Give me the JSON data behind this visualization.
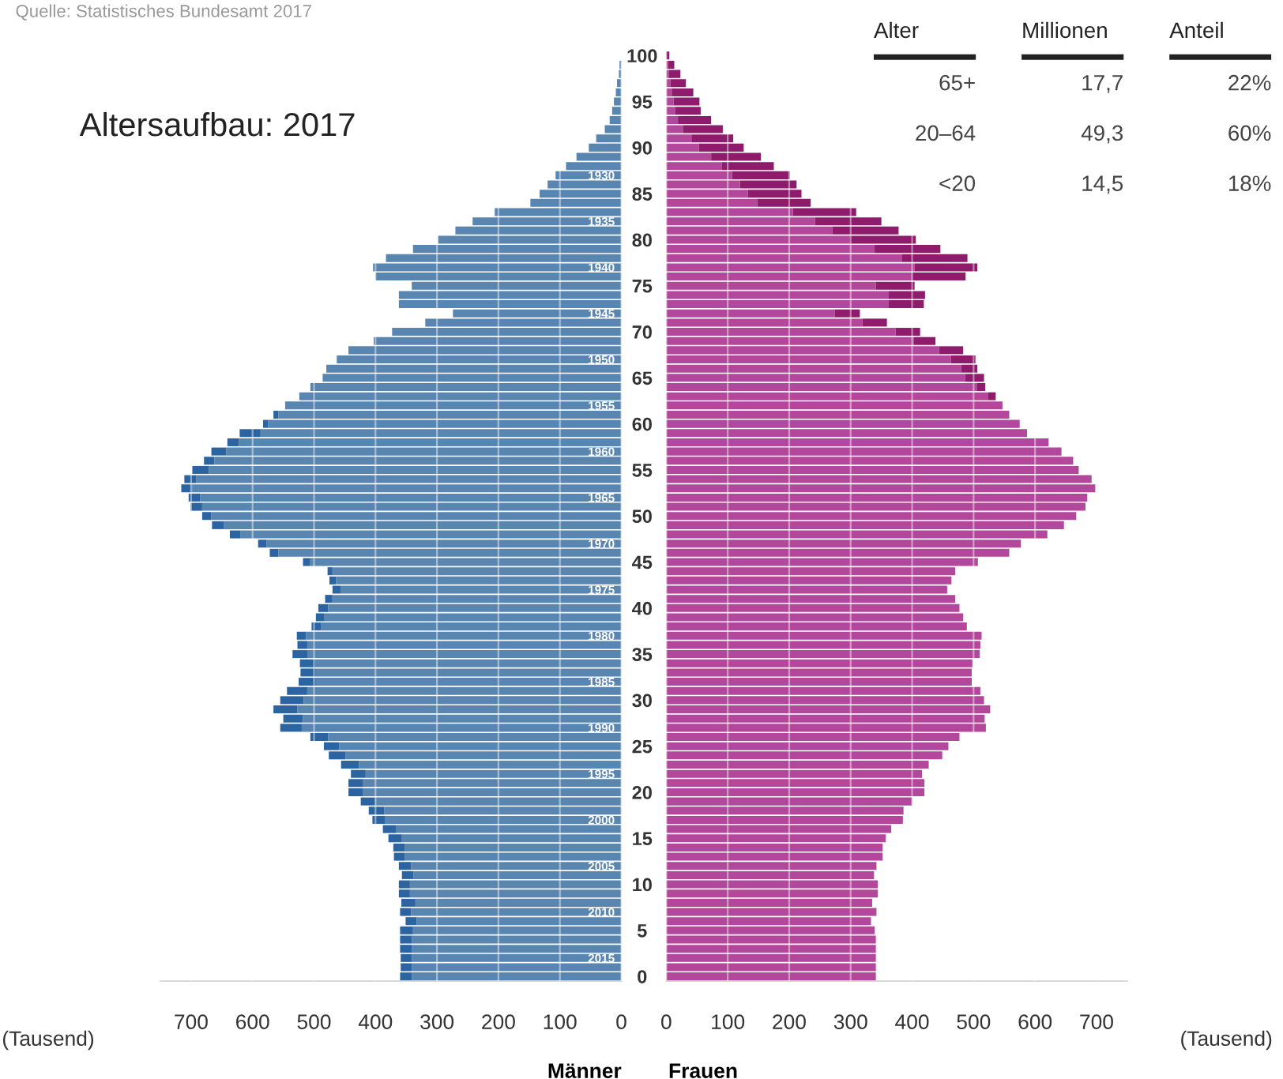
{
  "chart_data": [
    {
      "type": "bar",
      "orientation": "horizontal",
      "stacked": true,
      "title": "Altersaufbau: 2017",
      "xlabel": "Männer",
      "annotations": [
        "Quelle: Statistisches Bundesamt 2017",
        "(Tausend)"
      ],
      "categories": [
        null,
        null,
        null,
        null,
        null,
        null,
        null,
        null,
        null,
        null,
        null,
        null,
        null,
        "1930",
        null,
        null,
        null,
        null,
        "1935",
        null,
        null,
        null,
        null,
        "1940",
        null,
        null,
        null,
        null,
        "1945",
        null,
        null,
        null,
        null,
        "1950",
        null,
        null,
        null,
        null,
        "1955",
        null,
        null,
        null,
        null,
        "1960",
        null,
        null,
        null,
        null,
        "1965",
        null,
        null,
        null,
        null,
        "1970",
        null,
        null,
        null,
        null,
        "1975",
        null,
        null,
        null,
        null,
        "1980",
        null,
        null,
        null,
        null,
        "1985",
        null,
        null,
        null,
        null,
        "1990",
        null,
        null,
        null,
        null,
        "1995",
        null,
        null,
        null,
        null,
        "2000",
        null,
        null,
        null,
        null,
        "2005",
        null,
        null,
        null,
        null,
        "2010",
        null,
        null,
        null,
        null,
        "2015",
        null,
        null
      ],
      "xlim": [
        750,
        0
      ],
      "xticks": [
        700,
        600,
        500,
        400,
        300,
        200,
        100,
        0
      ],
      "grid": "x",
      "series": [
        {
          "color": "#5985b1",
          "values": [
            null,
            3,
            4,
            7,
            9,
            12,
            15,
            19,
            27,
            41,
            53,
            73,
            90,
            107,
            120,
            133,
            148,
            206,
            242,
            270,
            298,
            339,
            383,
            404,
            400,
            341,
            362,
            362,
            274,
            319,
            373,
            403,
            444,
            463,
            480,
            486,
            506,
            524,
            547,
            558,
            575,
            587,
            622,
            643,
            662,
            671,
            692,
            698,
            685,
            682,
            667,
            647,
            620,
            577,
            558,
            507,
            470,
            464,
            457,
            470,
            477,
            483,
            489,
            513,
            511,
            510,
            498,
            497,
            497,
            511,
            517,
            527,
            518,
            520,
            477,
            459,
            449,
            427,
            416,
            420,
            420,
            400,
            386,
            385,
            366,
            357,
            352,
            352,
            342,
            338,
            344,
            344,
            335,
            342,
            333,
            339,
            341,
            341,
            341,
            341,
            341
          ]
        },
        {
          "color": "#2b64a0",
          "values": [
            0,
            0,
            0,
            0,
            0,
            0,
            0,
            0,
            0,
            0,
            0,
            0,
            0,
            0,
            0,
            0,
            0,
            0,
            0,
            0,
            0,
            0,
            0,
            0,
            0,
            0,
            0,
            0,
            0,
            0,
            0,
            0,
            0,
            0,
            0,
            0,
            0,
            0,
            0,
            8,
            8,
            34,
            19,
            24,
            17,
            27,
            19,
            18,
            19,
            19,
            15,
            19,
            17,
            14,
            14,
            11,
            8,
            11,
            13,
            12,
            16,
            14,
            15,
            15,
            16,
            25,
            25,
            25,
            28,
            33,
            38,
            39,
            32,
            35,
            29,
            25,
            27,
            29,
            24,
            24,
            24,
            24,
            25,
            20,
            22,
            22,
            19,
            18,
            20,
            19,
            18,
            18,
            23,
            18,
            18,
            21,
            19,
            19,
            18,
            18,
            19
          ]
        }
      ]
    },
    {
      "type": "bar",
      "orientation": "horizontal",
      "stacked": true,
      "xlabel": "Frauen",
      "annotations": [
        "(Tausend)"
      ],
      "categories": [
        "100",
        null,
        null,
        null,
        null,
        "95",
        null,
        null,
        null,
        null,
        "90",
        null,
        null,
        null,
        null,
        "85",
        null,
        null,
        null,
        null,
        "80",
        null,
        null,
        null,
        null,
        "75",
        null,
        null,
        null,
        null,
        "70",
        null,
        null,
        null,
        null,
        "65",
        null,
        null,
        null,
        null,
        "60",
        null,
        null,
        null,
        null,
        "55",
        null,
        null,
        null,
        null,
        "50",
        null,
        null,
        null,
        null,
        "45",
        null,
        null,
        null,
        null,
        "40",
        null,
        null,
        null,
        null,
        "35",
        null,
        null,
        null,
        null,
        "30",
        null,
        null,
        null,
        null,
        "25",
        null,
        null,
        null,
        null,
        "20",
        null,
        null,
        null,
        null,
        "15",
        null,
        null,
        null,
        null,
        "10",
        null,
        null,
        null,
        null,
        "5",
        null,
        null,
        null,
        null,
        "0"
      ],
      "xlim": [
        0,
        750
      ],
      "xticks": [
        0,
        100,
        200,
        300,
        400,
        500,
        600,
        700
      ],
      "grid": "x",
      "series": [
        {
          "color": "#b2479b",
          "values": [
            null,
            3,
            4,
            7,
            9,
            12,
            15,
            19,
            27,
            41,
            53,
            73,
            90,
            107,
            120,
            133,
            148,
            206,
            242,
            270,
            298,
            339,
            383,
            404,
            400,
            341,
            362,
            362,
            274,
            319,
            373,
            403,
            444,
            463,
            480,
            486,
            506,
            524,
            547,
            558,
            575,
            587,
            622,
            643,
            662,
            671,
            692,
            698,
            685,
            682,
            667,
            647,
            620,
            577,
            558,
            507,
            470,
            464,
            457,
            470,
            477,
            483,
            489,
            513,
            511,
            510,
            498,
            497,
            497,
            511,
            517,
            527,
            518,
            520,
            477,
            459,
            449,
            427,
            416,
            420,
            420,
            400,
            386,
            385,
            366,
            357,
            352,
            352,
            342,
            338,
            344,
            344,
            335,
            342,
            333,
            339,
            341,
            341,
            341,
            341,
            341
          ]
        },
        {
          "color": "#8e1b6c",
          "values": [
            5,
            10,
            19,
            25,
            35,
            42,
            41,
            54,
            65,
            68,
            73,
            81,
            85,
            94,
            92,
            87,
            87,
            103,
            108,
            108,
            108,
            107,
            107,
            102,
            87,
            63,
            59,
            57,
            41,
            40,
            40,
            35,
            39,
            40,
            26,
            31,
            13,
            12,
            0,
            0,
            0,
            0,
            0,
            0,
            0,
            0,
            0,
            0,
            0,
            0,
            0,
            0,
            0,
            0,
            0,
            0,
            0,
            0,
            0,
            0,
            0,
            0,
            0,
            0,
            0,
            0,
            0,
            0,
            0,
            0,
            0,
            0,
            0,
            0,
            0,
            0,
            0,
            0,
            0,
            0,
            0,
            0,
            0,
            0,
            0,
            0,
            0,
            0,
            0,
            0,
            0,
            0,
            0,
            0,
            0,
            0,
            0,
            0,
            0,
            0,
            0
          ]
        }
      ]
    },
    {
      "type": "other",
      "categories": [
        "Alter",
        "Millionen",
        "Anteil"
      ],
      "cell_labels": [
        [
          "65+",
          "17,7",
          "22%"
        ],
        [
          "20–64",
          "49,3",
          "60%"
        ],
        [
          "<20",
          "14,5",
          "18%"
        ]
      ]
    }
  ]
}
